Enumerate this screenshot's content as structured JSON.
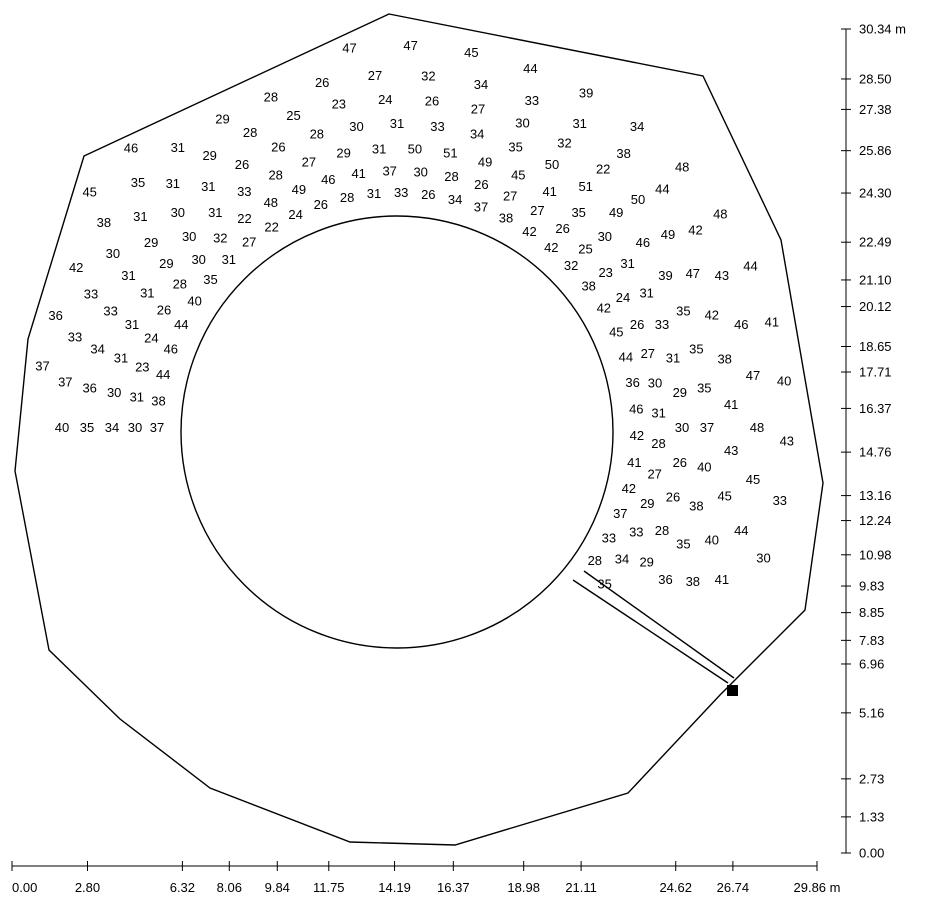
{
  "diagram": {
    "colors": {
      "stroke": "#000000",
      "text": "#000000",
      "background": "#ffffff",
      "marker": "#000000"
    },
    "vertical_scale": {
      "ticks": [
        "30.34 m",
        "28.50",
        "27.38",
        "25.86",
        "24.30",
        "22.49",
        "21.10",
        "20.12",
        "18.65",
        "17.71",
        "16.37",
        "14.76",
        "13.16",
        "12.24",
        "10.98",
        "9.83",
        "8.85",
        "7.83",
        "6.96",
        "5.16",
        "2.73",
        "1.33",
        "0.00"
      ],
      "values": [
        30.34,
        28.5,
        27.38,
        25.86,
        24.3,
        22.49,
        21.1,
        20.12,
        18.65,
        17.71,
        16.37,
        14.76,
        13.16,
        12.24,
        10.98,
        9.83,
        8.85,
        7.83,
        6.96,
        5.16,
        2.73,
        1.33,
        0.0
      ]
    },
    "horizontal_scale": {
      "ticks": [
        "0.00",
        "2.80",
        "6.32",
        "8.06",
        "9.84",
        "11.75",
        "14.19",
        "16.37",
        "18.98",
        "21.11",
        "24.62",
        "26.74",
        "29.86 m"
      ],
      "values": [
        0.0,
        2.8,
        6.32,
        8.06,
        9.84,
        11.75,
        14.19,
        16.37,
        18.98,
        21.11,
        24.62,
        26.74,
        29.86
      ]
    },
    "numbers": [
      "45",
      "46",
      "47",
      "47",
      "45",
      "44",
      "39",
      "34",
      "48",
      "48",
      "44",
      "41",
      "40",
      "43",
      "33",
      "30",
      "37",
      "36",
      "42",
      "38",
      "35",
      "31",
      "29",
      "28",
      "26",
      "27",
      "32",
      "34",
      "33",
      "31",
      "38",
      "44",
      "42",
      "43",
      "46",
      "47",
      "48",
      "45",
      "44",
      "41",
      "40",
      "37",
      "33",
      "33",
      "30",
      "31",
      "31",
      "29",
      "28",
      "25",
      "23",
      "24",
      "26",
      "27",
      "30",
      "32",
      "22",
      "50",
      "49",
      "47",
      "42",
      "38",
      "41",
      "43",
      "45",
      "40",
      "38",
      "35",
      "36",
      "34",
      "33",
      "31",
      "29",
      "30",
      "31",
      "26",
      "26",
      "28",
      "30",
      "31",
      "33",
      "34",
      "35",
      "50",
      "51",
      "49",
      "46",
      "39",
      "35",
      "35",
      "35",
      "37",
      "40",
      "38",
      "35",
      "36",
      "34",
      "30",
      "31",
      "31",
      "31",
      "29",
      "30",
      "31",
      "33",
      "28",
      "27",
      "29",
      "31",
      "50",
      "51",
      "49",
      "45",
      "41",
      "35",
      "30",
      "31",
      "31",
      "33",
      "31",
      "29",
      "30",
      "26",
      "26",
      "28",
      "29",
      "30",
      "31",
      "23",
      "24",
      "26",
      "28",
      "30",
      "32",
      "22",
      "48",
      "49",
      "46",
      "41",
      "37",
      "30",
      "28",
      "26",
      "27",
      "27",
      "26",
      "25",
      "23",
      "24",
      "26",
      "27",
      "30",
      "31",
      "28",
      "27",
      "29",
      "33",
      "34",
      "35",
      "37",
      "38",
      "44",
      "46",
      "44",
      "40",
      "35",
      "31",
      "27",
      "22",
      "24",
      "26",
      "28",
      "31",
      "33",
      "26",
      "34",
      "37",
      "38",
      "42",
      "42",
      "32",
      "38",
      "42",
      "45",
      "44",
      "36",
      "46",
      "42",
      "41",
      "42",
      "37",
      "33",
      "28",
      "35",
      "32",
      "27",
      "23",
      "27",
      "29",
      "33",
      "34",
      "24",
      "28",
      "31",
      "34",
      "35",
      "41",
      "46",
      "47",
      "43",
      "38",
      "43",
      "47",
      "41",
      "38",
      "37",
      "32",
      "31",
      "26",
      "29",
      "26",
      "32",
      "38",
      "42",
      "45",
      "44",
      "31",
      "36",
      "42",
      "45",
      "47",
      "43",
      "35",
      "41",
      "46",
      "47",
      "43",
      "42",
      "40",
      "41",
      "39",
      "35",
      "32",
      "29",
      "26",
      "27",
      "32",
      "28",
      "25",
      "36",
      "31",
      "38",
      "43",
      "47",
      "43",
      "34",
      "44",
      "46",
      "42",
      "28",
      "32",
      "40",
      "45",
      "43",
      "39"
    ]
  }
}
